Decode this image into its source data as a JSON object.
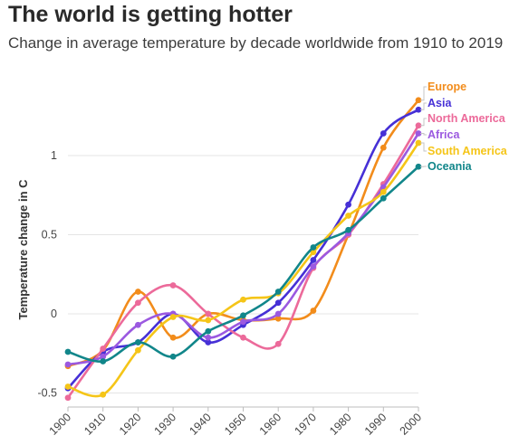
{
  "chart_data": {
    "type": "line",
    "title": "The world is getting hotter",
    "subtitle": "Change in average temperature by decade worldwide from 1910 to 2019",
    "xlabel": "",
    "ylabel": "Temperature change in C",
    "x": [
      1900,
      1910,
      1920,
      1930,
      1940,
      1950,
      1960,
      1970,
      1980,
      1990,
      2000
    ],
    "x_ticks": [
      "1900",
      "1910",
      "1920",
      "1930",
      "1940",
      "1950",
      "1960",
      "1970",
      "1980",
      "1990",
      "2000"
    ],
    "y_ticks": [
      "-0.5",
      "0",
      "0.5",
      "1"
    ],
    "y_tick_values": [
      -0.5,
      0,
      0.5,
      1
    ],
    "xlim": [
      1900,
      2000
    ],
    "ylim": [
      -0.6,
      1.4
    ],
    "grid": "horizontal",
    "legend": "right, at line ends",
    "series": [
      {
        "name": "Europe",
        "color": "#f28c1b",
        "values": [
          -0.33,
          -0.23,
          0.14,
          -0.15,
          0.0,
          -0.04,
          -0.03,
          0.02,
          0.5,
          1.05,
          1.35
        ]
      },
      {
        "name": "Asia",
        "color": "#4630d6",
        "values": [
          -0.47,
          -0.24,
          -0.18,
          0.0,
          -0.18,
          -0.07,
          0.07,
          0.34,
          0.69,
          1.14,
          1.29
        ]
      },
      {
        "name": "North America",
        "color": "#ec6a9a",
        "values": [
          -0.53,
          -0.22,
          0.07,
          0.18,
          0.0,
          -0.15,
          -0.19,
          0.29,
          0.5,
          0.82,
          1.19
        ]
      },
      {
        "name": "Africa",
        "color": "#9b59e0",
        "values": [
          -0.32,
          -0.27,
          -0.07,
          0.0,
          -0.15,
          -0.05,
          0.0,
          0.3,
          0.51,
          0.8,
          1.14
        ]
      },
      {
        "name": "South America",
        "color": "#f5c518",
        "values": [
          -0.46,
          -0.51,
          -0.23,
          -0.02,
          -0.04,
          0.09,
          0.13,
          0.39,
          0.62,
          0.77,
          1.08
        ]
      },
      {
        "name": "Oceania",
        "color": "#11868a",
        "values": [
          -0.24,
          -0.3,
          -0.18,
          -0.27,
          -0.11,
          -0.01,
          0.14,
          0.42,
          0.53,
          0.73,
          0.93
        ]
      }
    ]
  }
}
